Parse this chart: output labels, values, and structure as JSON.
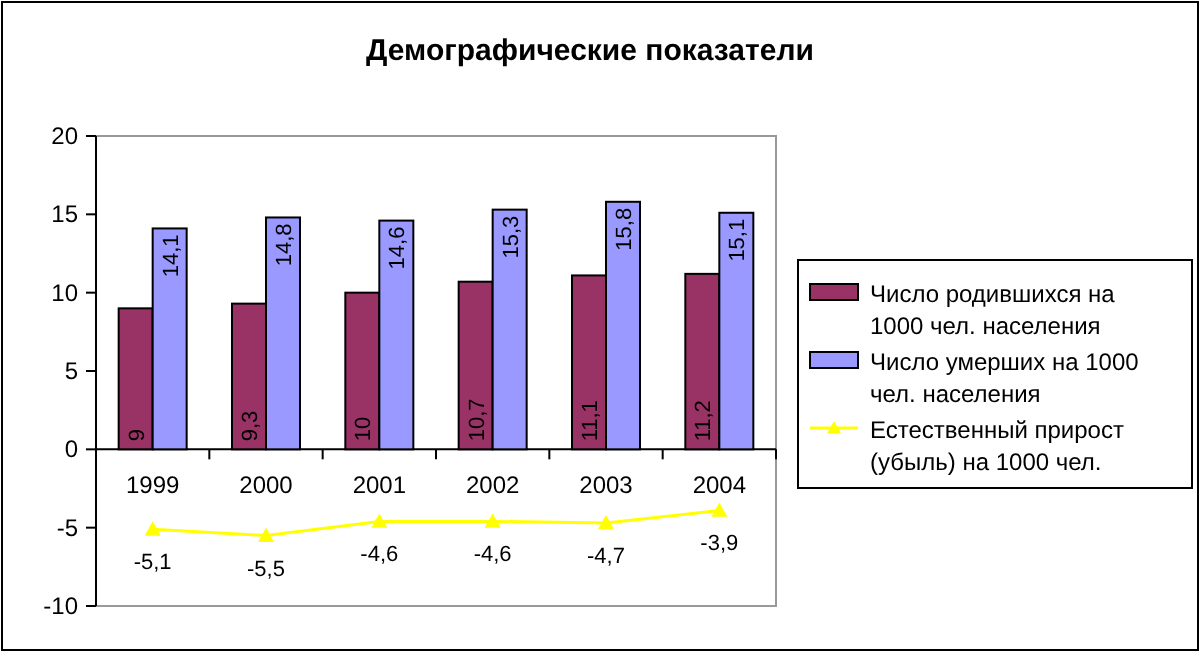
{
  "chart_data": {
    "type": "bar",
    "title": "Демографические показатели",
    "categories": [
      "1999",
      "2000",
      "2001",
      "2002",
      "2003",
      "2004"
    ],
    "series": [
      {
        "name": "Число родившихся на 1000 чел. населения",
        "color": "#993366",
        "values": [
          9,
          9.3,
          10,
          10.7,
          11.1,
          11.2
        ],
        "value_labels": [
          "9",
          "9,3",
          "10",
          "10,7",
          "11,1",
          "11,2"
        ]
      },
      {
        "name": "Число умерших на 1000 чел. населения",
        "color": "#9999ff",
        "values": [
          14.1,
          14.8,
          14.6,
          15.3,
          15.8,
          15.1
        ],
        "value_labels": [
          "14,1",
          "14,8",
          "14,6",
          "15,3",
          "15,8",
          "15,1"
        ]
      },
      {
        "name": "Естественный прирост (убыль) на 1000 чел.",
        "type": "line",
        "color": "#ffff00",
        "marker": "triangle",
        "values": [
          -5.1,
          -5.5,
          -4.6,
          -4.6,
          -4.7,
          -3.9
        ],
        "value_labels": [
          "-5,1",
          "-5,5",
          "-4,6",
          "-4,6",
          "-4,7",
          "-3,9"
        ]
      }
    ],
    "ylim": [
      -10,
      20
    ],
    "yticks": [
      {
        "value": -10,
        "label": "-10"
      },
      {
        "value": -5,
        "label": "-5"
      },
      0,
      5,
      10,
      15,
      20
    ],
    "legend": "right"
  }
}
